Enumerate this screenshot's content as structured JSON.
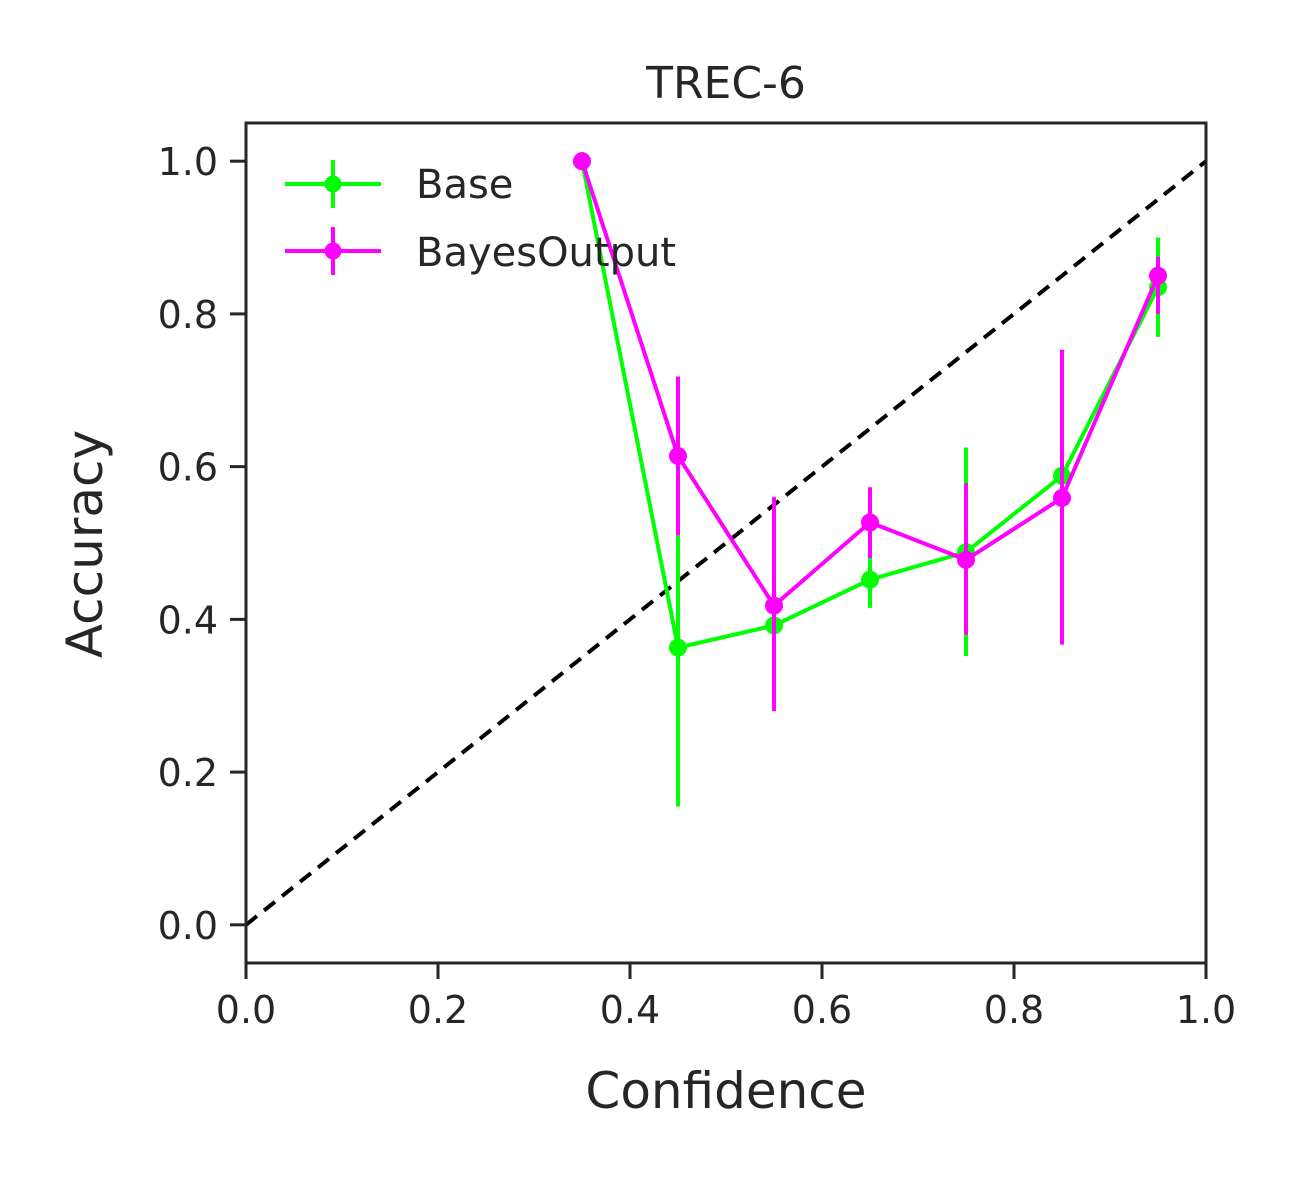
{
  "chart_data": {
    "type": "line",
    "title": "TREC-6",
    "xlabel": "Confidence",
    "ylabel": "Accuracy",
    "xlim": [
      0.0,
      1.0
    ],
    "ylim": [
      -0.05,
      1.05
    ],
    "xticks": [
      "0.0",
      "0.2",
      "0.4",
      "0.6",
      "0.8",
      "1.0"
    ],
    "yticks": [
      "0.0",
      "0.2",
      "0.4",
      "0.6",
      "0.8",
      "1.0"
    ],
    "legend_position": "top-left",
    "grid": false,
    "reference_line": {
      "style": "dashed",
      "color": "#000000",
      "from": [
        0,
        0
      ],
      "to": [
        1,
        1
      ]
    },
    "series": [
      {
        "name": "Base",
        "color": "#00ff00",
        "x": [
          0.35,
          0.45,
          0.55,
          0.65,
          0.75,
          0.85,
          0.95
        ],
        "y": [
          1.0,
          0.363,
          0.392,
          0.452,
          0.488,
          0.588,
          0.835
        ],
        "err_low": [
          1.0,
          0.155,
          0.392,
          0.415,
          0.352,
          0.588,
          0.77
        ],
        "err_high": [
          1.0,
          0.513,
          0.392,
          0.48,
          0.625,
          0.588,
          0.9
        ]
      },
      {
        "name": "BayesOutput",
        "color": "#ff00ff",
        "x": [
          0.35,
          0.45,
          0.55,
          0.65,
          0.75,
          0.85,
          0.95
        ],
        "y": [
          1.0,
          0.614,
          0.418,
          0.527,
          0.478,
          0.559,
          0.85
        ],
        "err_low": [
          1.0,
          0.51,
          0.28,
          0.48,
          0.38,
          0.367,
          0.8
        ],
        "err_high": [
          1.0,
          0.718,
          0.56,
          0.573,
          0.578,
          0.753,
          0.875
        ]
      }
    ]
  }
}
